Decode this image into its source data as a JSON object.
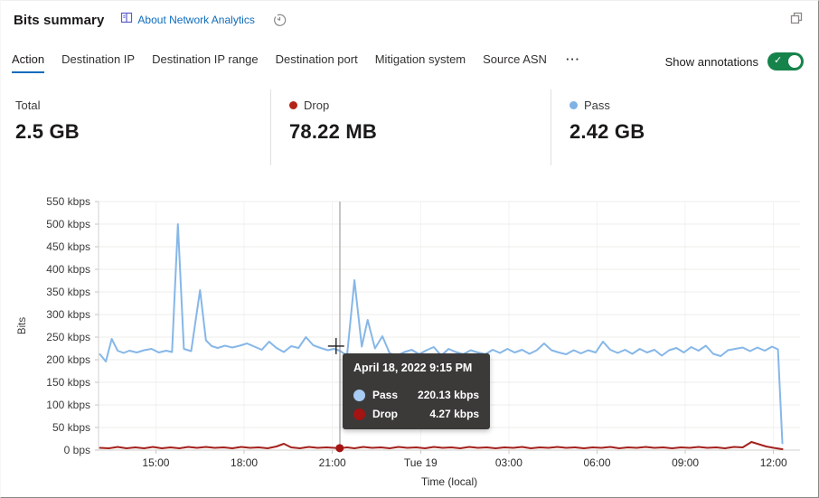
{
  "header": {
    "title": "Bits summary",
    "about_label": "About Network Analytics"
  },
  "controls": {
    "annotations_label": "Show annotations",
    "annotations_on": true,
    "overflow_label": "···"
  },
  "tabs": [
    {
      "label": "Action",
      "selected": true
    },
    {
      "label": "Destination IP",
      "selected": false
    },
    {
      "label": "Destination IP range",
      "selected": false
    },
    {
      "label": "Destination port",
      "selected": false
    },
    {
      "label": "Mitigation system",
      "selected": false
    },
    {
      "label": "Source ASN",
      "selected": false
    }
  ],
  "stats": [
    {
      "label": "Total",
      "value": "2.5 GB",
      "dot": null
    },
    {
      "label": "Drop",
      "value": "78.22 MB",
      "dot": "#b42318"
    },
    {
      "label": "Pass",
      "value": "2.42 GB",
      "dot": "#7fb2e5"
    }
  ],
  "tooltip": {
    "title": "April 18, 2022 9:15 PM",
    "rows": [
      {
        "label": "Pass",
        "value": "220.13 kbps",
        "color": "#a8ccf4"
      },
      {
        "label": "Drop",
        "value": "4.27 kbps",
        "color": "#a31412"
      }
    ]
  },
  "colors": {
    "accent": "#0f6cbd",
    "toggle_green": "#16834a",
    "pass_line": "#86b7e8",
    "drop_line": "#a4211c",
    "grid": "#ececeb",
    "vgrid": "#f4f3f2",
    "axis": "#d2d0ce",
    "tick_text": "#3b3a39"
  },
  "chart_data": {
    "type": "line",
    "title": "Bits summary",
    "xlabel": "Time (local)",
    "ylabel": "Bits",
    "x_unit": "hours since 2022-04-18 00:00 local (24 = Tue Apr 19 00:00)",
    "xlim": [
      13.05,
      36.9
    ],
    "ylim": [
      0,
      550
    ],
    "grid": true,
    "legend_position": "none",
    "y_ticks": [
      {
        "v": 0,
        "label": "0 bps"
      },
      {
        "v": 50,
        "label": "50 kbps"
      },
      {
        "v": 100,
        "label": "100 kbps"
      },
      {
        "v": 150,
        "label": "150 kbps"
      },
      {
        "v": 200,
        "label": "200 kbps"
      },
      {
        "v": 250,
        "label": "250 kbps"
      },
      {
        "v": 300,
        "label": "300 kbps"
      },
      {
        "v": 350,
        "label": "350 kbps"
      },
      {
        "v": 400,
        "label": "400 kbps"
      },
      {
        "v": 450,
        "label": "450 kbps"
      },
      {
        "v": 500,
        "label": "500 kbps"
      },
      {
        "v": 550,
        "label": "550 kbps"
      }
    ],
    "x_ticks": [
      {
        "t": 15,
        "label": "15:00"
      },
      {
        "t": 18,
        "label": "18:00"
      },
      {
        "t": 21,
        "label": "21:00"
      },
      {
        "t": 24,
        "label": "Tue 19"
      },
      {
        "t": 27,
        "label": "03:00"
      },
      {
        "t": 30,
        "label": "06:00"
      },
      {
        "t": 33,
        "label": "09:00"
      },
      {
        "t": 36,
        "label": "12:00"
      }
    ],
    "series": [
      {
        "name": "Pass",
        "color": "#86b7e8",
        "points": [
          [
            13.1,
            212
          ],
          [
            13.3,
            196
          ],
          [
            13.5,
            246
          ],
          [
            13.7,
            220
          ],
          [
            13.9,
            215
          ],
          [
            14.1,
            220
          ],
          [
            14.35,
            216
          ],
          [
            14.6,
            221
          ],
          [
            14.85,
            224
          ],
          [
            15.1,
            216
          ],
          [
            15.35,
            220
          ],
          [
            15.55,
            217
          ],
          [
            15.75,
            500
          ],
          [
            15.95,
            224
          ],
          [
            16.2,
            219
          ],
          [
            16.5,
            354
          ],
          [
            16.7,
            243
          ],
          [
            16.9,
            230
          ],
          [
            17.1,
            226
          ],
          [
            17.35,
            231
          ],
          [
            17.6,
            227
          ],
          [
            17.85,
            231
          ],
          [
            18.1,
            236
          ],
          [
            18.35,
            229
          ],
          [
            18.6,
            222
          ],
          [
            18.85,
            240
          ],
          [
            19.1,
            226
          ],
          [
            19.35,
            217
          ],
          [
            19.6,
            230
          ],
          [
            19.85,
            226
          ],
          [
            20.1,
            250
          ],
          [
            20.35,
            232
          ],
          [
            20.6,
            226
          ],
          [
            20.85,
            221
          ],
          [
            21.05,
            224
          ],
          [
            21.25,
            220
          ],
          [
            21.5,
            209
          ],
          [
            21.75,
            376
          ],
          [
            22.0,
            229
          ],
          [
            22.2,
            288
          ],
          [
            22.45,
            225
          ],
          [
            22.7,
            252
          ],
          [
            22.95,
            214
          ],
          [
            23.2,
            209
          ],
          [
            23.45,
            217
          ],
          [
            23.7,
            222
          ],
          [
            23.95,
            212
          ],
          [
            24.2,
            221
          ],
          [
            24.45,
            228
          ],
          [
            24.7,
            209
          ],
          [
            24.95,
            224
          ],
          [
            25.2,
            217
          ],
          [
            25.45,
            212
          ],
          [
            25.7,
            221
          ],
          [
            25.95,
            216
          ],
          [
            26.2,
            212
          ],
          [
            26.45,
            222
          ],
          [
            26.7,
            215
          ],
          [
            26.95,
            224
          ],
          [
            27.2,
            216
          ],
          [
            27.45,
            222
          ],
          [
            27.7,
            213
          ],
          [
            27.95,
            221
          ],
          [
            28.2,
            236
          ],
          [
            28.45,
            221
          ],
          [
            28.7,
            216
          ],
          [
            28.95,
            212
          ],
          [
            29.2,
            221
          ],
          [
            29.45,
            214
          ],
          [
            29.7,
            221
          ],
          [
            29.95,
            216
          ],
          [
            30.2,
            240
          ],
          [
            30.45,
            222
          ],
          [
            30.7,
            215
          ],
          [
            30.95,
            222
          ],
          [
            31.2,
            213
          ],
          [
            31.45,
            224
          ],
          [
            31.7,
            216
          ],
          [
            31.95,
            222
          ],
          [
            32.2,
            209
          ],
          [
            32.45,
            221
          ],
          [
            32.7,
            226
          ],
          [
            32.95,
            216
          ],
          [
            33.2,
            228
          ],
          [
            33.45,
            220
          ],
          [
            33.7,
            231
          ],
          [
            33.95,
            213
          ],
          [
            34.2,
            208
          ],
          [
            34.45,
            221
          ],
          [
            34.7,
            224
          ],
          [
            34.95,
            227
          ],
          [
            35.2,
            219
          ],
          [
            35.45,
            227
          ],
          [
            35.7,
            220
          ],
          [
            35.95,
            229
          ],
          [
            36.15,
            223
          ],
          [
            36.3,
            15
          ]
        ]
      },
      {
        "name": "Drop",
        "color": "#a4211c",
        "points": [
          [
            13.1,
            5
          ],
          [
            13.4,
            4
          ],
          [
            13.7,
            7
          ],
          [
            14.0,
            4
          ],
          [
            14.3,
            6
          ],
          [
            14.6,
            4
          ],
          [
            14.9,
            7
          ],
          [
            15.2,
            4
          ],
          [
            15.5,
            6
          ],
          [
            15.8,
            4
          ],
          [
            16.1,
            7
          ],
          [
            16.4,
            5
          ],
          [
            16.7,
            7
          ],
          [
            17.0,
            5
          ],
          [
            17.3,
            6
          ],
          [
            17.6,
            4
          ],
          [
            17.9,
            7
          ],
          [
            18.2,
            5
          ],
          [
            18.5,
            6
          ],
          [
            18.8,
            4
          ],
          [
            19.1,
            8
          ],
          [
            19.35,
            14
          ],
          [
            19.6,
            6
          ],
          [
            19.9,
            4
          ],
          [
            20.2,
            7
          ],
          [
            20.5,
            5
          ],
          [
            20.8,
            6
          ],
          [
            21.05,
            5
          ],
          [
            21.25,
            4.27
          ],
          [
            21.5,
            6
          ],
          [
            21.75,
            4
          ],
          [
            22.05,
            7
          ],
          [
            22.35,
            5
          ],
          [
            22.65,
            6
          ],
          [
            22.95,
            4
          ],
          [
            23.25,
            7
          ],
          [
            23.55,
            5
          ],
          [
            23.85,
            6
          ],
          [
            24.15,
            4
          ],
          [
            24.45,
            7
          ],
          [
            24.75,
            5
          ],
          [
            25.05,
            6
          ],
          [
            25.35,
            4
          ],
          [
            25.65,
            7
          ],
          [
            25.95,
            5
          ],
          [
            26.25,
            6
          ],
          [
            26.55,
            4
          ],
          [
            26.85,
            6
          ],
          [
            27.15,
            5
          ],
          [
            27.45,
            7
          ],
          [
            27.75,
            4
          ],
          [
            28.05,
            6
          ],
          [
            28.35,
            5
          ],
          [
            28.65,
            7
          ],
          [
            28.95,
            5
          ],
          [
            29.25,
            6
          ],
          [
            29.55,
            4
          ],
          [
            29.85,
            6
          ],
          [
            30.15,
            5
          ],
          [
            30.45,
            7
          ],
          [
            30.75,
            4
          ],
          [
            31.05,
            6
          ],
          [
            31.35,
            5
          ],
          [
            31.65,
            7
          ],
          [
            31.95,
            5
          ],
          [
            32.25,
            6
          ],
          [
            32.55,
            4
          ],
          [
            32.85,
            6
          ],
          [
            33.15,
            5
          ],
          [
            33.45,
            7
          ],
          [
            33.75,
            5
          ],
          [
            34.05,
            6
          ],
          [
            34.35,
            4
          ],
          [
            34.65,
            7
          ],
          [
            34.95,
            6
          ],
          [
            35.25,
            18
          ],
          [
            35.5,
            13
          ],
          [
            35.75,
            8
          ],
          [
            36.0,
            5
          ],
          [
            36.3,
            2
          ]
        ]
      }
    ],
    "hover": {
      "t": 21.25,
      "time_label": "April 18, 2022 9:15 PM",
      "pass_kbps": 220.13,
      "drop_kbps": 4.27
    }
  }
}
